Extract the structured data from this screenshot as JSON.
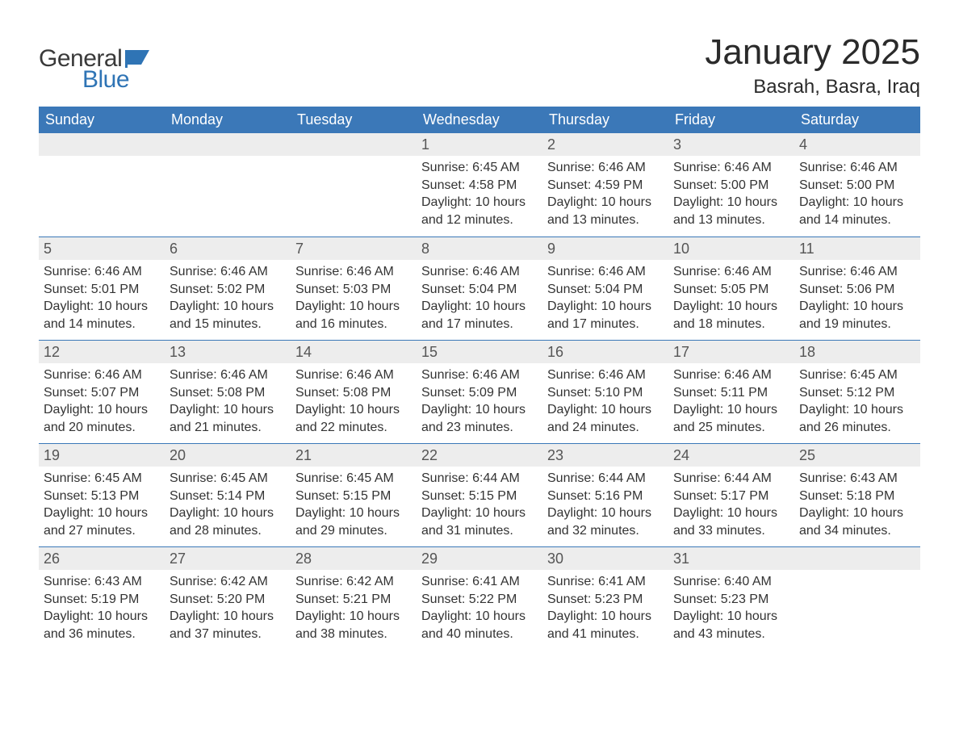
{
  "brand": {
    "word1": "General",
    "word2": "Blue",
    "color_word1": "#3a3a3a",
    "color_word2": "#2f74b5",
    "shape_color": "#2f74b5"
  },
  "title": "January 2025",
  "location": "Basrah, Basra, Iraq",
  "colors": {
    "header_bg": "#3b78b8",
    "header_text": "#ffffff",
    "daynum_bg": "#ededed",
    "daynum_text": "#555555",
    "body_text": "#333333",
    "row_border": "#3b78b8",
    "page_bg": "#ffffff"
  },
  "weekdays": [
    "Sunday",
    "Monday",
    "Tuesday",
    "Wednesday",
    "Thursday",
    "Friday",
    "Saturday"
  ],
  "weeks": [
    [
      null,
      null,
      null,
      {
        "n": "1",
        "sunrise": "Sunrise: 6:45 AM",
        "sunset": "Sunset: 4:58 PM",
        "daylight": "Daylight: 10 hours and 12 minutes."
      },
      {
        "n": "2",
        "sunrise": "Sunrise: 6:46 AM",
        "sunset": "Sunset: 4:59 PM",
        "daylight": "Daylight: 10 hours and 13 minutes."
      },
      {
        "n": "3",
        "sunrise": "Sunrise: 6:46 AM",
        "sunset": "Sunset: 5:00 PM",
        "daylight": "Daylight: 10 hours and 13 minutes."
      },
      {
        "n": "4",
        "sunrise": "Sunrise: 6:46 AM",
        "sunset": "Sunset: 5:00 PM",
        "daylight": "Daylight: 10 hours and 14 minutes."
      }
    ],
    [
      {
        "n": "5",
        "sunrise": "Sunrise: 6:46 AM",
        "sunset": "Sunset: 5:01 PM",
        "daylight": "Daylight: 10 hours and 14 minutes."
      },
      {
        "n": "6",
        "sunrise": "Sunrise: 6:46 AM",
        "sunset": "Sunset: 5:02 PM",
        "daylight": "Daylight: 10 hours and 15 minutes."
      },
      {
        "n": "7",
        "sunrise": "Sunrise: 6:46 AM",
        "sunset": "Sunset: 5:03 PM",
        "daylight": "Daylight: 10 hours and 16 minutes."
      },
      {
        "n": "8",
        "sunrise": "Sunrise: 6:46 AM",
        "sunset": "Sunset: 5:04 PM",
        "daylight": "Daylight: 10 hours and 17 minutes."
      },
      {
        "n": "9",
        "sunrise": "Sunrise: 6:46 AM",
        "sunset": "Sunset: 5:04 PM",
        "daylight": "Daylight: 10 hours and 17 minutes."
      },
      {
        "n": "10",
        "sunrise": "Sunrise: 6:46 AM",
        "sunset": "Sunset: 5:05 PM",
        "daylight": "Daylight: 10 hours and 18 minutes."
      },
      {
        "n": "11",
        "sunrise": "Sunrise: 6:46 AM",
        "sunset": "Sunset: 5:06 PM",
        "daylight": "Daylight: 10 hours and 19 minutes."
      }
    ],
    [
      {
        "n": "12",
        "sunrise": "Sunrise: 6:46 AM",
        "sunset": "Sunset: 5:07 PM",
        "daylight": "Daylight: 10 hours and 20 minutes."
      },
      {
        "n": "13",
        "sunrise": "Sunrise: 6:46 AM",
        "sunset": "Sunset: 5:08 PM",
        "daylight": "Daylight: 10 hours and 21 minutes."
      },
      {
        "n": "14",
        "sunrise": "Sunrise: 6:46 AM",
        "sunset": "Sunset: 5:08 PM",
        "daylight": "Daylight: 10 hours and 22 minutes."
      },
      {
        "n": "15",
        "sunrise": "Sunrise: 6:46 AM",
        "sunset": "Sunset: 5:09 PM",
        "daylight": "Daylight: 10 hours and 23 minutes."
      },
      {
        "n": "16",
        "sunrise": "Sunrise: 6:46 AM",
        "sunset": "Sunset: 5:10 PM",
        "daylight": "Daylight: 10 hours and 24 minutes."
      },
      {
        "n": "17",
        "sunrise": "Sunrise: 6:46 AM",
        "sunset": "Sunset: 5:11 PM",
        "daylight": "Daylight: 10 hours and 25 minutes."
      },
      {
        "n": "18",
        "sunrise": "Sunrise: 6:45 AM",
        "sunset": "Sunset: 5:12 PM",
        "daylight": "Daylight: 10 hours and 26 minutes."
      }
    ],
    [
      {
        "n": "19",
        "sunrise": "Sunrise: 6:45 AM",
        "sunset": "Sunset: 5:13 PM",
        "daylight": "Daylight: 10 hours and 27 minutes."
      },
      {
        "n": "20",
        "sunrise": "Sunrise: 6:45 AM",
        "sunset": "Sunset: 5:14 PM",
        "daylight": "Daylight: 10 hours and 28 minutes."
      },
      {
        "n": "21",
        "sunrise": "Sunrise: 6:45 AM",
        "sunset": "Sunset: 5:15 PM",
        "daylight": "Daylight: 10 hours and 29 minutes."
      },
      {
        "n": "22",
        "sunrise": "Sunrise: 6:44 AM",
        "sunset": "Sunset: 5:15 PM",
        "daylight": "Daylight: 10 hours and 31 minutes."
      },
      {
        "n": "23",
        "sunrise": "Sunrise: 6:44 AM",
        "sunset": "Sunset: 5:16 PM",
        "daylight": "Daylight: 10 hours and 32 minutes."
      },
      {
        "n": "24",
        "sunrise": "Sunrise: 6:44 AM",
        "sunset": "Sunset: 5:17 PM",
        "daylight": "Daylight: 10 hours and 33 minutes."
      },
      {
        "n": "25",
        "sunrise": "Sunrise: 6:43 AM",
        "sunset": "Sunset: 5:18 PM",
        "daylight": "Daylight: 10 hours and 34 minutes."
      }
    ],
    [
      {
        "n": "26",
        "sunrise": "Sunrise: 6:43 AM",
        "sunset": "Sunset: 5:19 PM",
        "daylight": "Daylight: 10 hours and 36 minutes."
      },
      {
        "n": "27",
        "sunrise": "Sunrise: 6:42 AM",
        "sunset": "Sunset: 5:20 PM",
        "daylight": "Daylight: 10 hours and 37 minutes."
      },
      {
        "n": "28",
        "sunrise": "Sunrise: 6:42 AM",
        "sunset": "Sunset: 5:21 PM",
        "daylight": "Daylight: 10 hours and 38 minutes."
      },
      {
        "n": "29",
        "sunrise": "Sunrise: 6:41 AM",
        "sunset": "Sunset: 5:22 PM",
        "daylight": "Daylight: 10 hours and 40 minutes."
      },
      {
        "n": "30",
        "sunrise": "Sunrise: 6:41 AM",
        "sunset": "Sunset: 5:23 PM",
        "daylight": "Daylight: 10 hours and 41 minutes."
      },
      {
        "n": "31",
        "sunrise": "Sunrise: 6:40 AM",
        "sunset": "Sunset: 5:23 PM",
        "daylight": "Daylight: 10 hours and 43 minutes."
      },
      null
    ]
  ]
}
